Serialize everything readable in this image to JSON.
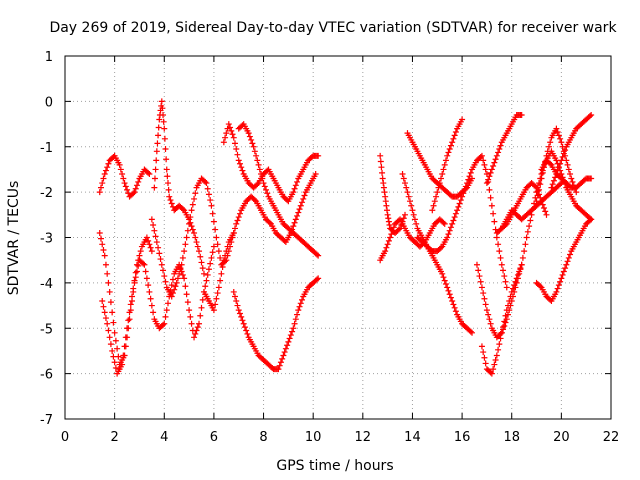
{
  "chart_data": {
    "type": "scatter",
    "title": "Day 269 of 2019, Sidereal Day-to-day VTEC variation (SDTVAR) for receiver wark",
    "xlabel": "GPS time / hours",
    "ylabel": "SDTVAR / TECUs",
    "xlim": [
      0,
      22
    ],
    "ylim": [
      -7,
      1
    ],
    "xticks": [
      "0",
      "2",
      "4",
      "6",
      "8",
      "10",
      "12",
      "14",
      "16",
      "18",
      "20",
      "22"
    ],
    "yticks": [
      "1",
      "0",
      "-1",
      "-2",
      "-3",
      "-4",
      "-5",
      "-6",
      "-7"
    ],
    "grid": true,
    "marker": "+",
    "color": "#ff0000",
    "series": [
      {
        "name": "s1",
        "x": [
          1.4,
          1.6,
          1.8,
          2.0,
          2.2,
          2.4,
          2.6,
          2.8,
          3.0,
          3.2,
          3.4,
          3.6,
          3.8,
          4.0,
          4.2,
          4.4,
          4.6,
          4.8,
          5.0,
          5.2,
          5.4,
          5.6,
          5.8,
          6.0
        ],
        "y": [
          -2.9,
          -3.4,
          -4.2,
          -5.1,
          -5.8,
          -5.6,
          -4.8,
          -4.0,
          -3.5,
          -3.6,
          -4.2,
          -4.8,
          -5.0,
          -4.9,
          -4.3,
          -3.8,
          -3.6,
          -3.9,
          -4.6,
          -5.2,
          -4.9,
          -4.2,
          -3.7,
          -3.2
        ]
      },
      {
        "name": "s2",
        "x": [
          1.4,
          1.6,
          1.8,
          2.0,
          2.2,
          2.4,
          2.6,
          2.8,
          3.0,
          3.2,
          3.4
        ],
        "y": [
          -2.0,
          -1.6,
          -1.3,
          -1.2,
          -1.4,
          -1.8,
          -2.1,
          -2.0,
          -1.7,
          -1.5,
          -1.6
        ]
      },
      {
        "name": "s3",
        "x": [
          1.5,
          1.7,
          1.9,
          2.1,
          2.3,
          2.5,
          2.7,
          2.9,
          3.1,
          3.3,
          3.5
        ],
        "y": [
          -4.4,
          -4.9,
          -5.5,
          -6.0,
          -5.8,
          -5.0,
          -4.3,
          -3.6,
          -3.2,
          -3.0,
          -3.3
        ]
      },
      {
        "name": "s4",
        "x": [
          3.6,
          3.7,
          3.8,
          3.9,
          4.0,
          4.1,
          4.2,
          4.4,
          4.6,
          4.8,
          5.0,
          5.2,
          5.4,
          5.6
        ],
        "y": [
          -1.9,
          -1.1,
          -0.4,
          0.0,
          -0.6,
          -1.5,
          -2.1,
          -2.4,
          -2.3,
          -2.4,
          -2.6,
          -2.9,
          -3.3,
          -3.8
        ]
      },
      {
        "name": "s5",
        "x": [
          3.5,
          3.7,
          3.9,
          4.1,
          4.3,
          4.5,
          4.7,
          4.9,
          5.1,
          5.3,
          5.5,
          5.7,
          5.9,
          6.1,
          6.3,
          6.5,
          6.7,
          6.9,
          7.1,
          7.3,
          7.5,
          7.7,
          7.9,
          8.1,
          8.3,
          8.5,
          8.7,
          8.9,
          9.1,
          9.3,
          9.5,
          9.7,
          9.9,
          10.1
        ],
        "y": [
          -2.6,
          -3.1,
          -3.6,
          -4.1,
          -4.3,
          -4.0,
          -3.6,
          -3.0,
          -2.4,
          -1.9,
          -1.7,
          -1.8,
          -2.3,
          -3.0,
          -3.6,
          -3.5,
          -3.1,
          -2.7,
          -2.4,
          -2.2,
          -2.1,
          -2.2,
          -2.4,
          -2.6,
          -2.7,
          -2.9,
          -3.0,
          -3.1,
          -2.9,
          -2.6,
          -2.3,
          -2.0,
          -1.8,
          -1.6
        ]
      },
      {
        "name": "s6",
        "x": [
          6.4,
          6.6,
          6.8,
          7.0,
          7.2,
          7.4,
          7.6,
          7.8,
          8.0,
          8.2,
          8.4,
          8.6,
          8.8,
          9.0,
          9.2,
          9.4,
          9.6,
          9.8,
          10.0,
          10.2
        ],
        "y": [
          -0.9,
          -0.5,
          -0.8,
          -1.3,
          -1.6,
          -1.8,
          -1.9,
          -1.8,
          -1.6,
          -1.5,
          -1.7,
          -1.9,
          -2.1,
          -2.2,
          -2.0,
          -1.7,
          -1.5,
          -1.3,
          -1.2,
          -1.2
        ]
      },
      {
        "name": "s7",
        "x": [
          7.0,
          7.2,
          7.4,
          7.6,
          7.8,
          8.0,
          8.2,
          8.4,
          8.6,
          8.8,
          9.0,
          9.2,
          9.4,
          9.6,
          9.8,
          10.0,
          10.2
        ],
        "y": [
          -0.6,
          -0.5,
          -0.7,
          -1.0,
          -1.4,
          -1.8,
          -2.1,
          -2.3,
          -2.5,
          -2.7,
          -2.8,
          -2.9,
          -3.0,
          -3.1,
          -3.2,
          -3.3,
          -3.4
        ]
      },
      {
        "name": "s8",
        "x": [
          6.8,
          7.0,
          7.2,
          7.4,
          7.6,
          7.8,
          8.0,
          8.2,
          8.4,
          8.6,
          8.8,
          9.0,
          9.2,
          9.4,
          9.6,
          9.8,
          10.0,
          10.2
        ],
        "y": [
          -4.2,
          -4.6,
          -4.9,
          -5.2,
          -5.4,
          -5.6,
          -5.7,
          -5.8,
          -5.9,
          -5.9,
          -5.6,
          -5.3,
          -5.0,
          -4.6,
          -4.3,
          -4.1,
          -4.0,
          -3.9
        ]
      },
      {
        "name": "s9",
        "x": [
          5.6,
          5.8,
          6.0,
          6.2,
          6.4,
          6.6,
          6.8
        ],
        "y": [
          -4.2,
          -4.4,
          -4.6,
          -4.1,
          -3.5,
          -3.1,
          -2.9
        ]
      },
      {
        "name": "s10",
        "x": [
          12.7,
          12.9,
          13.1,
          13.3,
          13.5,
          13.7,
          13.9,
          14.1,
          14.3,
          14.5,
          14.7,
          14.9,
          15.1,
          15.3
        ],
        "y": [
          -3.5,
          -3.3,
          -3.0,
          -2.7,
          -2.6,
          -2.8,
          -3.0,
          -3.1,
          -3.2,
          -3.1,
          -2.9,
          -2.7,
          -2.6,
          -2.7
        ]
      },
      {
        "name": "s11",
        "x": [
          12.7,
          12.8,
          12.9,
          13.0,
          13.1,
          13.3,
          13.5,
          13.7
        ],
        "y": [
          -1.2,
          -1.7,
          -2.1,
          -2.5,
          -2.8,
          -2.9,
          -2.8,
          -2.5
        ]
      },
      {
        "name": "s12",
        "x": [
          13.8,
          14.0,
          14.2,
          14.4,
          14.6,
          14.8,
          15.0,
          15.2,
          15.4,
          15.6,
          15.8,
          16.0,
          16.2,
          16.4
        ],
        "y": [
          -0.7,
          -0.9,
          -1.1,
          -1.3,
          -1.5,
          -1.7,
          -1.8,
          -1.9,
          -2.0,
          -2.1,
          -2.1,
          -2.0,
          -1.9,
          -1.7
        ]
      },
      {
        "name": "s13",
        "x": [
          14.8,
          15.0,
          15.2,
          15.4,
          15.6,
          15.8,
          16.0
        ],
        "y": [
          -2.4,
          -2.0,
          -1.6,
          -1.2,
          -0.9,
          -0.6,
          -0.4
        ]
      },
      {
        "name": "s14",
        "x": [
          13.6,
          13.8,
          14.0,
          14.2,
          14.4,
          14.6,
          14.8,
          15.0,
          15.2,
          15.4,
          15.6,
          15.8,
          16.0,
          16.2,
          16.4
        ],
        "y": [
          -1.6,
          -2.0,
          -2.4,
          -2.8,
          -3.0,
          -3.2,
          -3.4,
          -3.6,
          -3.8,
          -4.1,
          -4.4,
          -4.7,
          -4.9,
          -5.0,
          -5.1
        ]
      },
      {
        "name": "s15",
        "x": [
          14.2,
          14.4,
          14.6,
          14.8,
          15.0,
          15.2,
          15.4,
          15.6,
          15.8,
          16.0,
          16.2,
          16.4,
          16.6,
          16.8,
          17.0,
          17.2,
          17.4,
          17.6,
          17.8
        ],
        "y": [
          -3.0,
          -3.1,
          -3.2,
          -3.3,
          -3.3,
          -3.2,
          -3.0,
          -2.7,
          -2.4,
          -2.1,
          -1.8,
          -1.5,
          -1.3,
          -1.2,
          -1.6,
          -2.3,
          -3.0,
          -3.6,
          -4.1
        ]
      },
      {
        "name": "s16",
        "x": [
          16.8,
          17.0,
          17.2,
          17.4,
          17.6,
          17.8,
          18.0,
          18.2,
          18.4
        ],
        "y": [
          -5.4,
          -5.9,
          -6.0,
          -5.6,
          -5.1,
          -4.6,
          -4.2,
          -3.9,
          -3.6
        ]
      },
      {
        "name": "s17",
        "x": [
          17.0,
          17.2,
          17.4,
          17.6,
          17.8,
          18.0,
          18.2,
          18.4
        ],
        "y": [
          -1.8,
          -1.5,
          -1.2,
          -0.9,
          -0.7,
          -0.5,
          -0.3,
          -0.3
        ]
      },
      {
        "name": "s18",
        "x": [
          16.6,
          16.8,
          17.0,
          17.2,
          17.4,
          17.6,
          17.8,
          18.0,
          18.2,
          18.4,
          18.6,
          18.8,
          19.0,
          19.2,
          19.4,
          19.6,
          19.8,
          20.0,
          20.2,
          20.4,
          20.6,
          20.8,
          21.0,
          21.2
        ],
        "y": [
          -3.6,
          -4.1,
          -4.6,
          -5.0,
          -5.2,
          -5.1,
          -4.8,
          -4.4,
          -4.0,
          -3.6,
          -3.0,
          -2.5,
          -2.0,
          -1.6,
          -1.3,
          -1.1,
          -1.3,
          -1.6,
          -1.9,
          -2.1,
          -2.3,
          -2.4,
          -2.5,
          -2.6
        ]
      },
      {
        "name": "s19",
        "x": [
          17.4,
          17.6,
          17.8,
          18.0,
          18.2,
          18.4,
          18.6,
          18.8,
          19.0,
          19.2,
          19.4
        ],
        "y": [
          -2.9,
          -2.8,
          -2.7,
          -2.5,
          -2.3,
          -2.1,
          -1.9,
          -1.8,
          -1.9,
          -2.2,
          -2.5
        ]
      },
      {
        "name": "s20",
        "x": [
          17.6,
          17.8,
          18.0,
          18.2,
          18.4,
          18.6,
          18.8,
          19.0,
          19.2,
          19.4,
          19.6,
          19.8,
          20.0
        ],
        "y": [
          -2.8,
          -2.6,
          -2.4,
          -2.5,
          -2.6,
          -2.5,
          -2.4,
          -2.3,
          -2.2,
          -2.1,
          -2.0,
          -1.9,
          -1.8
        ]
      },
      {
        "name": "s21",
        "x": [
          19.0,
          19.2,
          19.4,
          19.6,
          19.8,
          20.0,
          20.2,
          20.4,
          20.6,
          20.8,
          21.0,
          21.2
        ],
        "y": [
          -4.0,
          -4.1,
          -4.3,
          -4.4,
          -4.2,
          -3.9,
          -3.6,
          -3.3,
          -3.1,
          -2.9,
          -2.7,
          -2.6
        ]
      },
      {
        "name": "s22",
        "x": [
          19.2,
          19.4,
          19.6,
          19.8,
          20.0,
          20.2,
          20.4,
          20.6,
          20.8,
          21.0,
          21.2
        ],
        "y": [
          -1.5,
          -1.3,
          -1.4,
          -1.6,
          -1.7,
          -1.8,
          -1.9,
          -1.9,
          -1.8,
          -1.7,
          -1.7
        ]
      },
      {
        "name": "s23",
        "x": [
          19.6,
          19.8,
          20.0,
          20.2,
          20.4,
          20.6,
          20.8,
          21.0,
          21.2
        ],
        "y": [
          -1.9,
          -1.6,
          -1.3,
          -1.0,
          -0.8,
          -0.6,
          -0.5,
          -0.4,
          -0.3
        ]
      },
      {
        "name": "s24",
        "x": [
          19.0,
          19.2,
          19.4,
          19.6,
          19.8,
          20.0,
          20.2,
          20.4,
          20.6
        ],
        "y": [
          -2.2,
          -1.7,
          -1.2,
          -0.8,
          -0.6,
          -0.9,
          -1.3,
          -1.7,
          -2.0
        ]
      }
    ]
  }
}
